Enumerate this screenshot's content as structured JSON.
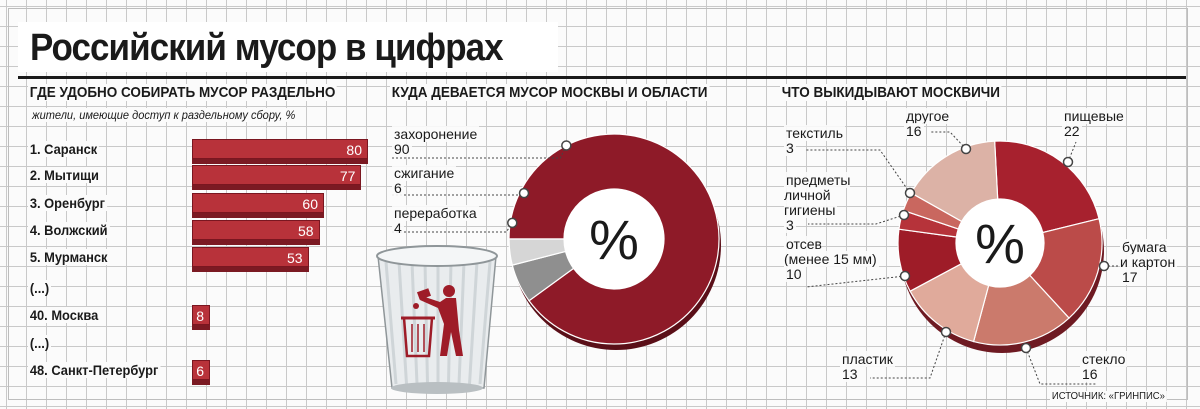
{
  "title": "Российский мусор в цифрах",
  "source": "ИСТОЧНИК: «ГРИНПИС»",
  "chart_data": [
    {
      "type": "bar",
      "title": "ГДЕ УДОБНО СОБИРАТЬ МУСОР РАЗДЕЛЬНО",
      "subtitle": "жители, имеющие доступ к раздельному сбору, %",
      "rows": [
        {
          "label": "1. Саранск",
          "value": 80
        },
        {
          "label": "2. Мытищи",
          "value": 77
        },
        {
          "label": "3. Оренбург",
          "value": 60
        },
        {
          "label": "4. Волжский",
          "value": 58
        },
        {
          "label": "5. Мурманск",
          "value": 53
        },
        {
          "label": "(...)",
          "value": null
        },
        {
          "label": "40. Москва",
          "value": 8
        },
        {
          "label": "(...)",
          "value": null
        },
        {
          "label": "48. Санкт-Петербург",
          "value": 6
        }
      ],
      "colors": {
        "bar": "#b8323a",
        "bar_shadow": "#7b1a23"
      }
    },
    {
      "type": "pie",
      "title": "КУДА ДЕВАЕТСЯ МУСОР МОСКВЫ И ОБЛАСТИ",
      "center_label": "%",
      "slices": [
        {
          "label": "захоронение",
          "value": 90,
          "color": "#8e1a28"
        },
        {
          "label": "сжигание",
          "value": 6,
          "color": "#8f8f8f"
        },
        {
          "label": "переработка",
          "value": 4,
          "color": "#d6d6d6"
        }
      ]
    },
    {
      "type": "pie",
      "title": "ЧТО ВЫКИДЫВАЮТ МОСКВИЧИ",
      "center_label": "%",
      "slices": [
        {
          "label": "пищевые",
          "value": 22,
          "color": "#a7212e"
        },
        {
          "label": "бумага и картон",
          "value": 17,
          "color": "#bb4b49"
        },
        {
          "label": "стекло",
          "value": 16,
          "color": "#cb7a6c"
        },
        {
          "label": "пластик",
          "value": 13,
          "color": "#e0aa9b"
        },
        {
          "label": "отсев (менее 15 мм)",
          "value": 10,
          "color": "#9e1c28"
        },
        {
          "label": "предметы личной гигиены",
          "value": 3,
          "color": "#b6333a"
        },
        {
          "label": "текстиль",
          "value": 3,
          "color": "#c9675f"
        },
        {
          "label": "другое",
          "value": 16,
          "color": "#dcb2a6"
        }
      ]
    }
  ]
}
